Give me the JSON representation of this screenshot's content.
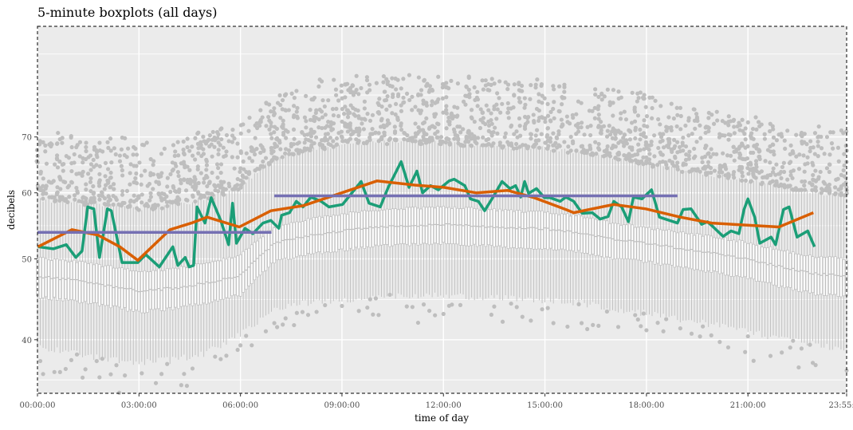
{
  "chart_data": {
    "type": "boxplot",
    "title": "5-minute boxplots (all days)",
    "xlabel": "time of day",
    "ylabel": "decibels",
    "y_scale": "log",
    "ylim": [
      34.5,
      95
    ],
    "xlim_minutes": [
      0,
      1435
    ],
    "y_ticks": [
      40,
      50,
      60,
      70
    ],
    "y_minor_grid": [
      35.8,
      44.7,
      54.8,
      64.8,
      78.6,
      88
    ],
    "x_ticks": [
      {
        "minute": 0,
        "label": "00:00:00"
      },
      {
        "minute": 180,
        "label": "03:00:00"
      },
      {
        "minute": 360,
        "label": "06:00:00"
      },
      {
        "minute": 540,
        "label": "09:00:00"
      },
      {
        "minute": 720,
        "label": "12:00:00"
      },
      {
        "minute": 900,
        "label": "15:00:00"
      },
      {
        "minute": 1080,
        "label": "18:00:00"
      },
      {
        "minute": 1260,
        "label": "21:00:00"
      },
      {
        "minute": 1435,
        "label": "23:55:00"
      }
    ],
    "box_interval_minutes": 5,
    "box_stats_hourly": {
      "hours": [
        0,
        1,
        2,
        3,
        4,
        5,
        6,
        7,
        8,
        9,
        10,
        11,
        12,
        13,
        14,
        15,
        16,
        17,
        18,
        19,
        20,
        21,
        22,
        23,
        24
      ],
      "whisker_low": [
        39.2,
        38.6,
        38.0,
        37.5,
        37.8,
        38.6,
        40.5,
        43.5,
        44.3,
        44.6,
        45.0,
        45.2,
        45.2,
        45.0,
        44.8,
        44.6,
        44.3,
        43.6,
        43.0,
        42.3,
        41.7,
        40.9,
        40.0,
        39.4,
        39.0
      ],
      "q1": [
        45.0,
        44.6,
        44.0,
        43.2,
        43.6,
        44.3,
        45.3,
        49.6,
        50.6,
        51.2,
        51.8,
        52.0,
        52.2,
        51.9,
        51.6,
        51.4,
        51.0,
        50.1,
        49.6,
        48.9,
        48.2,
        47.4,
        46.3,
        45.4,
        45.0
      ],
      "median": [
        47.6,
        47.2,
        46.5,
        45.8,
        46.1,
        46.8,
        47.8,
        52.2,
        53.3,
        54.0,
        54.6,
        54.8,
        55.0,
        54.7,
        54.5,
        54.3,
        53.8,
        52.8,
        52.2,
        51.5,
        50.8,
        50.0,
        48.9,
        48.0,
        47.6
      ],
      "q3": [
        50.1,
        49.7,
        49.0,
        48.3,
        48.6,
        49.5,
        50.5,
        54.6,
        55.8,
        56.6,
        57.2,
        57.5,
        57.7,
        57.4,
        57.1,
        56.9,
        56.3,
        55.2,
        54.5,
        53.8,
        53.1,
        52.3,
        51.2,
        50.3,
        50.0
      ],
      "whisker_high": [
        59.0,
        58.5,
        58.0,
        57.5,
        58.0,
        59.0,
        61.0,
        66.0,
        67.5,
        68.5,
        69.0,
        69.0,
        69.0,
        68.5,
        68.0,
        68.0,
        67.0,
        66.0,
        65.0,
        64.0,
        63.0,
        62.0,
        61.0,
        60.0,
        59.5
      ]
    },
    "series": [
      {
        "name": "single-day",
        "color": "#1b9e77",
        "points": [
          [
            1,
            51.7
          ],
          [
            28,
            51.4
          ],
          [
            51,
            52.0
          ],
          [
            68,
            50.2
          ],
          [
            79,
            51.1
          ],
          [
            89,
            57.7
          ],
          [
            100,
            57.4
          ],
          [
            110,
            50.2
          ],
          [
            124,
            57.4
          ],
          [
            131,
            57.1
          ],
          [
            150,
            49.5
          ],
          [
            178,
            49.5
          ],
          [
            192,
            50.6
          ],
          [
            216,
            48.9
          ],
          [
            240,
            51.7
          ],
          [
            249,
            49.1
          ],
          [
            262,
            50.2
          ],
          [
            269,
            48.9
          ],
          [
            277,
            49.1
          ],
          [
            283,
            57.7
          ],
          [
            297,
            55.2
          ],
          [
            308,
            59.2
          ],
          [
            325,
            55.6
          ],
          [
            339,
            52.0
          ],
          [
            346,
            58.3
          ],
          [
            353,
            52.2
          ],
          [
            368,
            54.4
          ],
          [
            382,
            53.6
          ],
          [
            400,
            55.2
          ],
          [
            414,
            55.6
          ],
          [
            428,
            54.4
          ],
          [
            433,
            56.4
          ],
          [
            447,
            56.8
          ],
          [
            459,
            58.6
          ],
          [
            471,
            57.7
          ],
          [
            485,
            59.3
          ],
          [
            503,
            58.6
          ],
          [
            517,
            57.7
          ],
          [
            541,
            58.1
          ],
          [
            574,
            61.9
          ],
          [
            588,
            58.3
          ],
          [
            608,
            57.7
          ],
          [
            622,
            60.9
          ],
          [
            645,
            65.4
          ],
          [
            659,
            60.9
          ],
          [
            673,
            63.7
          ],
          [
            683,
            60.0
          ],
          [
            697,
            61.2
          ],
          [
            711,
            60.5
          ],
          [
            730,
            62.0
          ],
          [
            739,
            62.3
          ],
          [
            758,
            61.2
          ],
          [
            768,
            59.0
          ],
          [
            782,
            58.6
          ],
          [
            793,
            57.1
          ],
          [
            806,
            59.0
          ],
          [
            824,
            61.9
          ],
          [
            838,
            60.7
          ],
          [
            848,
            61.2
          ],
          [
            857,
            59.3
          ],
          [
            864,
            61.9
          ],
          [
            871,
            59.9
          ],
          [
            885,
            60.7
          ],
          [
            899,
            59.2
          ],
          [
            909,
            59.2
          ],
          [
            927,
            58.6
          ],
          [
            937,
            59.3
          ],
          [
            951,
            58.6
          ],
          [
            966,
            56.7
          ],
          [
            984,
            56.8
          ],
          [
            998,
            55.8
          ],
          [
            1012,
            56.2
          ],
          [
            1022,
            58.6
          ],
          [
            1036,
            57.7
          ],
          [
            1048,
            55.4
          ],
          [
            1057,
            59.3
          ],
          [
            1072,
            59.0
          ],
          [
            1089,
            60.5
          ],
          [
            1103,
            56.1
          ],
          [
            1135,
            55.2
          ],
          [
            1145,
            57.3
          ],
          [
            1159,
            57.4
          ],
          [
            1178,
            55.0
          ],
          [
            1188,
            55.4
          ],
          [
            1196,
            54.8
          ],
          [
            1216,
            53.2
          ],
          [
            1230,
            54.0
          ],
          [
            1244,
            53.6
          ],
          [
            1253,
            57.3
          ],
          [
            1260,
            59.0
          ],
          [
            1272,
            56.1
          ],
          [
            1281,
            52.2
          ],
          [
            1301,
            53.1
          ],
          [
            1309,
            52.0
          ],
          [
            1323,
            57.3
          ],
          [
            1333,
            57.7
          ],
          [
            1347,
            53.1
          ],
          [
            1366,
            54.0
          ],
          [
            1378,
            51.7
          ]
        ]
      },
      {
        "name": "smoothed",
        "color": "#d95f02",
        "points": [
          [
            1,
            51.7
          ],
          [
            61,
            54.2
          ],
          [
            107,
            53.4
          ],
          [
            146,
            51.7
          ],
          [
            178,
            49.8
          ],
          [
            235,
            54.2
          ],
          [
            273,
            55.2
          ],
          [
            301,
            56.1
          ],
          [
            358,
            54.6
          ],
          [
            414,
            57.1
          ],
          [
            471,
            57.9
          ],
          [
            527,
            59.6
          ],
          [
            602,
            62.0
          ],
          [
            669,
            61.3
          ],
          [
            721,
            60.9
          ],
          [
            778,
            60.0
          ],
          [
            834,
            60.4
          ],
          [
            881,
            59.2
          ],
          [
            937,
            57.3
          ],
          [
            951,
            56.8
          ],
          [
            1022,
            58.1
          ],
          [
            1079,
            57.4
          ],
          [
            1140,
            56.1
          ],
          [
            1196,
            55.2
          ],
          [
            1234,
            55.0
          ],
          [
            1315,
            54.6
          ],
          [
            1376,
            56.8
          ]
        ]
      },
      {
        "name": "period-mean",
        "color": "#7570b3",
        "segments": [
          {
            "from": 0,
            "to": 415,
            "value": 53.8
          },
          {
            "from": 420,
            "to": 1135,
            "value": 59.5
          }
        ]
      }
    ]
  }
}
